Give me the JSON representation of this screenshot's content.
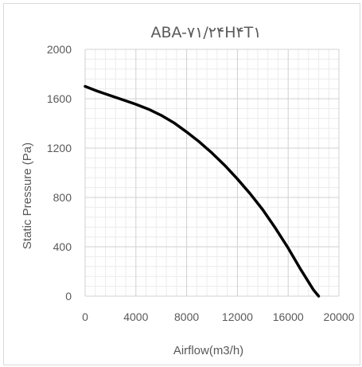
{
  "chart_data": {
    "type": "line",
    "title": "ABA-۷۱/۲۴H۴T۱",
    "xlabel": "Airflow(m3/h)",
    "ylabel": "Static Pressure (Pa)",
    "xlim": [
      0,
      20000
    ],
    "ylim": [
      0,
      2000
    ],
    "xticks": [
      "0",
      "4000",
      "8000",
      "12000",
      "16000",
      "20000"
    ],
    "yticks": [
      "0",
      "400",
      "800",
      "1200",
      "1600",
      "2000"
    ],
    "grid": true,
    "series": [
      {
        "color": "#000000",
        "x": [
          0,
          1000,
          2000,
          3000,
          4000,
          5000,
          6000,
          7000,
          8000,
          9000,
          10000,
          11000,
          12000,
          13000,
          14000,
          15000,
          16000,
          17000,
          18000,
          18400
        ],
        "y": [
          1700,
          1660,
          1625,
          1590,
          1555,
          1515,
          1465,
          1405,
          1330,
          1250,
          1160,
          1060,
          950,
          830,
          700,
          550,
          390,
          215,
          50,
          0
        ]
      }
    ]
  }
}
